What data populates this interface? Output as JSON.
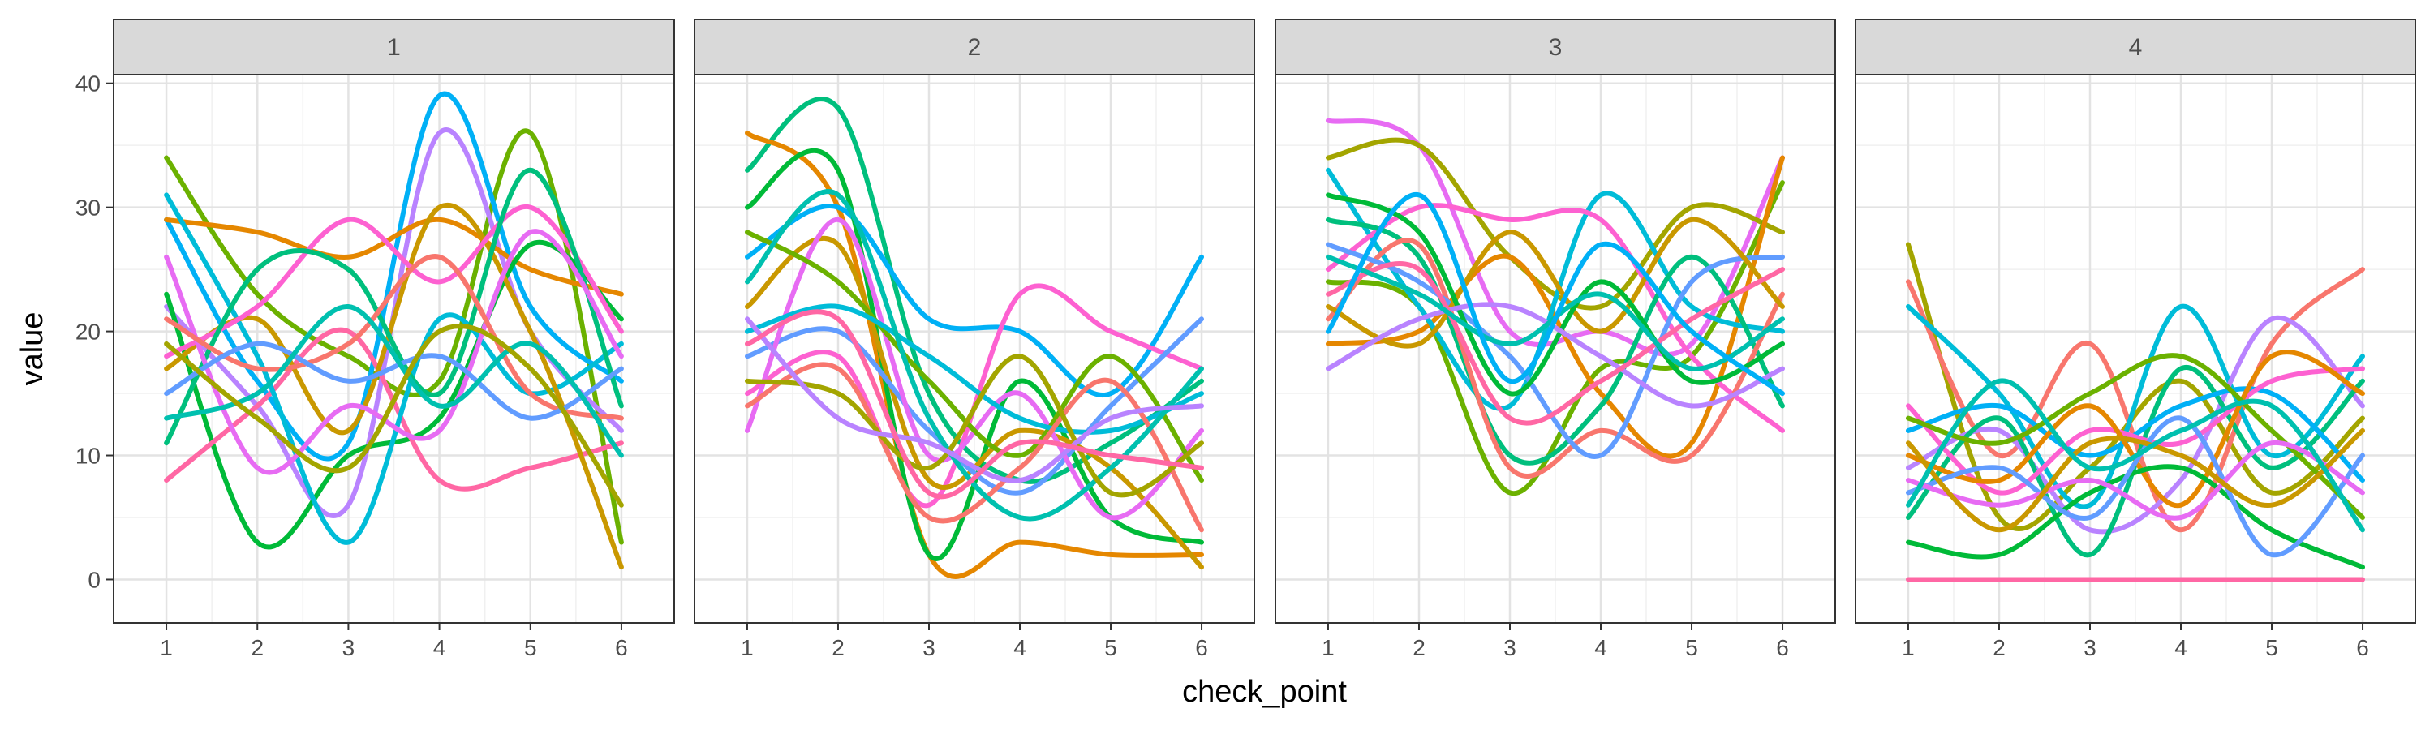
{
  "chart_data": {
    "type": "line",
    "xlabel": "check_point",
    "ylabel": "value",
    "x": [
      1,
      2,
      3,
      4,
      5,
      6
    ],
    "x_ticks": [
      "1",
      "2",
      "3",
      "4",
      "5",
      "6"
    ],
    "y_ticks": [
      "0",
      "10",
      "20",
      "30",
      "40"
    ],
    "xlim": [
      0.42,
      6.58
    ],
    "ylim": [
      -3.5,
      40.7
    ],
    "grid": true,
    "legend": "none",
    "line_style": "smooth",
    "palette": [
      "#F8766D",
      "#E58700",
      "#C99800",
      "#A3A500",
      "#6BB100",
      "#00BA38",
      "#00BF7D",
      "#00C0AF",
      "#00BCD8",
      "#00B0F6",
      "#619CFF",
      "#B983FF",
      "#E76BF3",
      "#FD61D1",
      "#FF67A4"
    ],
    "facets": [
      {
        "label": "1",
        "series": [
          {
            "color": "#6BB100",
            "values": [
              34,
              23,
              18,
              16,
              36,
              3
            ]
          },
          {
            "color": "#00B0F6",
            "values": [
              29,
              16,
              11,
              39,
              22,
              16
            ]
          },
          {
            "color": "#B983FF",
            "values": [
              22,
              14,
              6,
              36,
              20,
              12
            ]
          },
          {
            "color": "#E58700",
            "values": [
              29,
              28,
              26,
              29,
              25,
              23
            ]
          },
          {
            "color": "#00BA38",
            "values": [
              23,
              3,
              10,
              13,
              27,
              21
            ]
          },
          {
            "color": "#FF67A4",
            "values": [
              8,
              14,
              20,
              8,
              9,
              11
            ]
          },
          {
            "color": "#00BCD8",
            "values": [
              31,
              18,
              3,
              21,
              15,
              19
            ]
          },
          {
            "color": "#C99800",
            "values": [
              17,
              21,
              12,
              30,
              20,
              1
            ]
          },
          {
            "color": "#FD61D1",
            "values": [
              18,
              22,
              29,
              24,
              30,
              20
            ]
          },
          {
            "color": "#00BF7D",
            "values": [
              11,
              25,
              25,
              15,
              33,
              14
            ]
          },
          {
            "color": "#E76BF3",
            "values": [
              26,
              9,
              14,
              12,
              28,
              18
            ]
          },
          {
            "color": "#F8766D",
            "values": [
              21,
              17,
              19,
              26,
              15,
              13
            ]
          },
          {
            "color": "#619CFF",
            "values": [
              15,
              19,
              16,
              18,
              13,
              17
            ]
          },
          {
            "color": "#00C0AF",
            "values": [
              13,
              15,
              22,
              14,
              19,
              10
            ]
          },
          {
            "color": "#A3A500",
            "values": [
              19,
              13,
              9,
              20,
              17,
              6
            ]
          }
        ]
      },
      {
        "label": "2",
        "series": [
          {
            "color": "#00BF7D",
            "values": [
              33,
              38,
              15,
              8,
              11,
              16
            ]
          },
          {
            "color": "#E58700",
            "values": [
              36,
              30,
              2,
              3,
              2,
              2
            ]
          },
          {
            "color": "#00B0F6",
            "values": [
              26,
              30,
              21,
              20,
              15,
              26
            ]
          },
          {
            "color": "#FD61D1",
            "values": [
              15,
              18,
              6,
              23,
              20,
              17
            ]
          },
          {
            "color": "#00BA38",
            "values": [
              30,
              33,
              2,
              16,
              5,
              3
            ]
          },
          {
            "color": "#C99800",
            "values": [
              22,
              27,
              8,
              12,
              9,
              1
            ]
          },
          {
            "color": "#619CFF",
            "values": [
              18,
              20,
              12,
              7,
              14,
              21
            ]
          },
          {
            "color": "#E76BF3",
            "values": [
              12,
              29,
              10,
              15,
              5,
              12
            ]
          },
          {
            "color": "#6BB100",
            "values": [
              28,
              24,
              16,
              10,
              18,
              8
            ]
          },
          {
            "color": "#00BCD8",
            "values": [
              20,
              22,
              18,
              13,
              12,
              15
            ]
          },
          {
            "color": "#F8766D",
            "values": [
              14,
              17,
              5,
              9,
              16,
              4
            ]
          },
          {
            "color": "#00C0AF",
            "values": [
              24,
              31,
              13,
              5,
              9,
              17
            ]
          },
          {
            "color": "#A3A500",
            "values": [
              16,
              15,
              9,
              18,
              7,
              11
            ]
          },
          {
            "color": "#B983FF",
            "values": [
              21,
              13,
              11,
              8,
              13,
              14
            ]
          },
          {
            "color": "#FF67A4",
            "values": [
              19,
              21,
              7,
              11,
              10,
              9
            ]
          }
        ]
      },
      {
        "label": "3",
        "series": [
          {
            "color": "#E76BF3",
            "values": [
              37,
              35,
              20,
              20,
              19,
              34
            ]
          },
          {
            "color": "#A3A500",
            "values": [
              34,
              35,
              26,
              22,
              30,
              28
            ]
          },
          {
            "color": "#6BB100",
            "values": [
              24,
              22,
              7,
              17,
              18,
              32
            ]
          },
          {
            "color": "#E58700",
            "values": [
              19,
              20,
              26,
              15,
              11,
              34
            ]
          },
          {
            "color": "#00BCD8",
            "values": [
              33,
              22,
              14,
              31,
              22,
              20
            ]
          },
          {
            "color": "#FD61D1",
            "values": [
              25,
              30,
              29,
              29,
              18,
              12
            ]
          },
          {
            "color": "#00BF7D",
            "values": [
              29,
              26,
              10,
              14,
              26,
              14
            ]
          },
          {
            "color": "#F8766D",
            "values": [
              21,
              27,
              9,
              12,
              10,
              23
            ]
          },
          {
            "color": "#619CFF",
            "values": [
              27,
              24,
              18,
              10,
              24,
              26
            ]
          },
          {
            "color": "#C99800",
            "values": [
              22,
              19,
              28,
              20,
              29,
              22
            ]
          },
          {
            "color": "#00BA38",
            "values": [
              31,
              28,
              15,
              24,
              16,
              19
            ]
          },
          {
            "color": "#B983FF",
            "values": [
              17,
              21,
              22,
              18,
              14,
              17
            ]
          },
          {
            "color": "#FF67A4",
            "values": [
              23,
              25,
              13,
              16,
              21,
              25
            ]
          },
          {
            "color": "#00C0AF",
            "values": [
              26,
              23,
              19,
              23,
              17,
              21
            ]
          },
          {
            "color": "#00B0F6",
            "values": [
              20,
              31,
              16,
              27,
              20,
              15
            ]
          }
        ]
      },
      {
        "label": "4",
        "series": [
          {
            "color": "#FF67A4",
            "values": [
              0,
              0,
              0,
              0,
              0,
              0
            ]
          },
          {
            "color": "#A3A500",
            "values": [
              27,
              5,
              9,
              16,
              7,
              13
            ]
          },
          {
            "color": "#F8766D",
            "values": [
              24,
              10,
              19,
              4,
              19,
              25
            ]
          },
          {
            "color": "#00BCD8",
            "values": [
              22,
              15,
              6,
              22,
              10,
              18
            ]
          },
          {
            "color": "#B983FF",
            "values": [
              9,
              12,
              4,
              8,
              21,
              14
            ]
          },
          {
            "color": "#00BF7D",
            "values": [
              5,
              13,
              2,
              17,
              9,
              16
            ]
          },
          {
            "color": "#00B0F6",
            "values": [
              12,
              14,
              10,
              14,
              15,
              8
            ]
          },
          {
            "color": "#FD61D1",
            "values": [
              14,
              7,
              12,
              11,
              16,
              17
            ]
          },
          {
            "color": "#E58700",
            "values": [
              10,
              8,
              14,
              6,
              18,
              15
            ]
          },
          {
            "color": "#00BA38",
            "values": [
              3,
              2,
              7,
              9,
              4,
              1
            ]
          },
          {
            "color": "#619CFF",
            "values": [
              7,
              9,
              5,
              13,
              2,
              10
            ]
          },
          {
            "color": "#6BB100",
            "values": [
              13,
              11,
              15,
              18,
              12,
              5
            ]
          },
          {
            "color": "#E76BF3",
            "values": [
              8,
              6,
              8,
              5,
              11,
              7
            ]
          },
          {
            "color": "#C99800",
            "values": [
              11,
              4,
              11,
              10,
              6,
              12
            ]
          },
          {
            "color": "#00C0AF",
            "values": [
              6,
              16,
              9,
              12,
              14,
              4
            ]
          }
        ]
      }
    ]
  }
}
